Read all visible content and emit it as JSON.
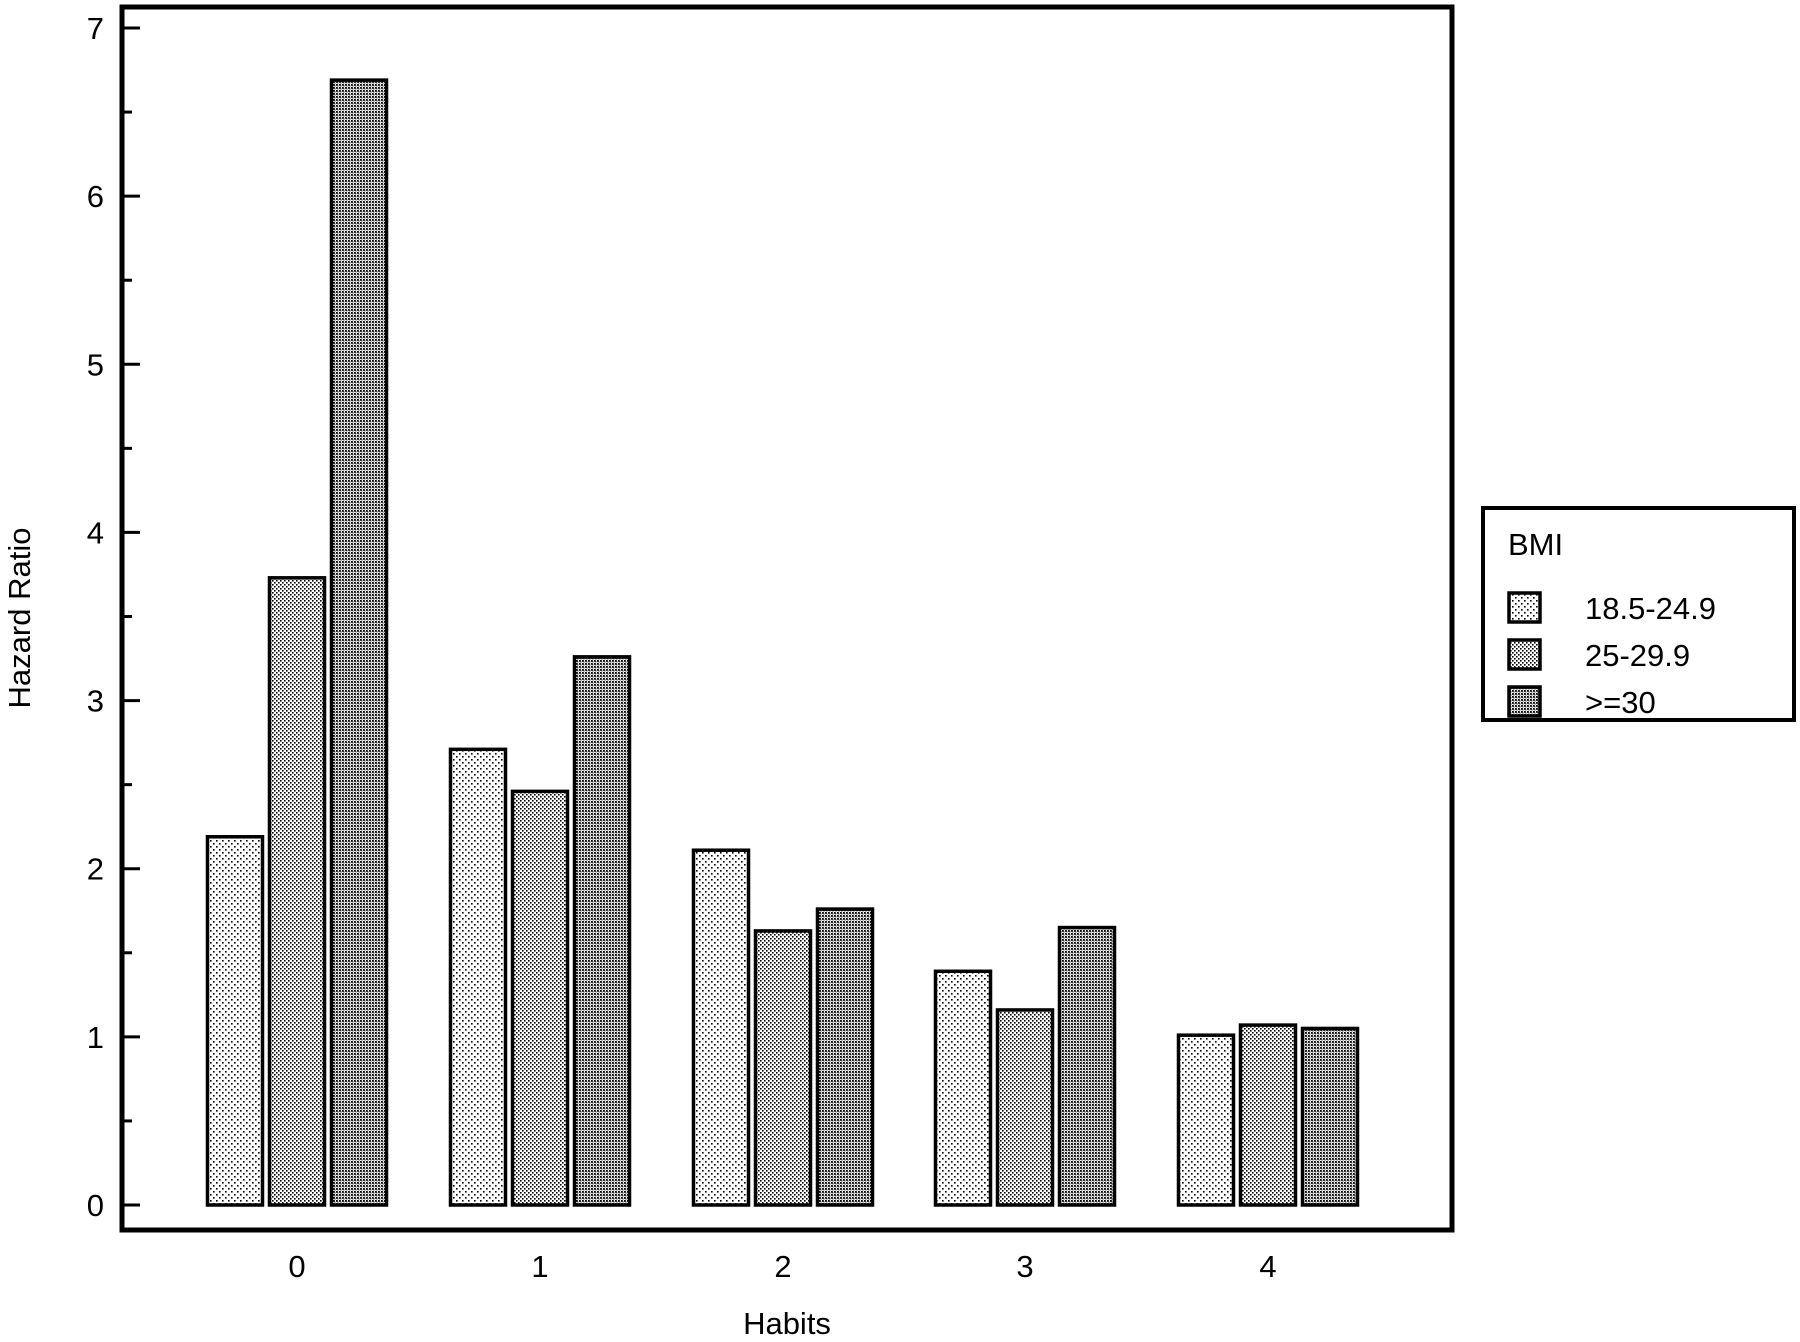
{
  "chart_data": {
    "type": "bar",
    "xlabel": "Habits",
    "ylabel": "Hazard Ratio",
    "categories": [
      "0",
      "1",
      "2",
      "3",
      "4"
    ],
    "ylim": [
      0,
      7
    ],
    "yticks": [
      0,
      1,
      2,
      3,
      4,
      5,
      6,
      7
    ],
    "grid": false,
    "legend": {
      "title": "BMI",
      "position": "right"
    },
    "series": [
      {
        "name": "18.5-24.9",
        "values": [
          2.19,
          2.71,
          2.11,
          1.39,
          1.01
        ],
        "pattern": "light-dots"
      },
      {
        "name": "25-29.9",
        "values": [
          3.73,
          2.46,
          1.63,
          1.16,
          1.07
        ],
        "pattern": "medium-dots"
      },
      {
        "name": ">=30",
        "values": [
          6.69,
          3.26,
          1.76,
          1.65,
          1.05
        ],
        "pattern": "dense-dots"
      }
    ]
  }
}
